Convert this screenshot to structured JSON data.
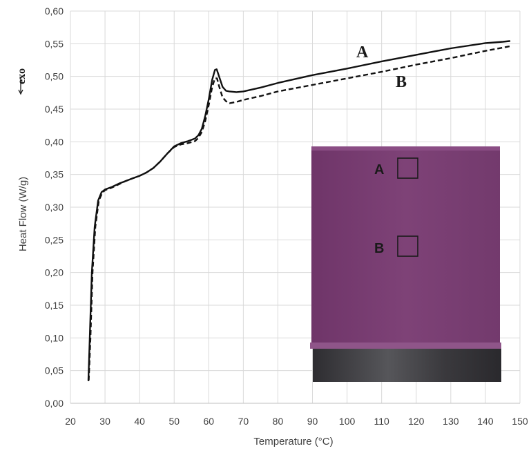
{
  "chart_data": {
    "type": "line",
    "title": "",
    "xlabel": "Temperature (°C)",
    "ylabel": "Heat Flow (W/g)",
    "xlim": [
      20,
      150
    ],
    "ylim": [
      0,
      0.6
    ],
    "x_ticks": [
      20,
      30,
      40,
      50,
      60,
      70,
      80,
      90,
      100,
      110,
      120,
      130,
      140,
      150
    ],
    "y_ticks": [
      "0,00",
      "0,05",
      "0,10",
      "0,15",
      "0,20",
      "0,25",
      "0,30",
      "0,35",
      "0,40",
      "0,45",
      "0,50",
      "0,55",
      "0,60"
    ],
    "grid": true,
    "direction_marker": "exo",
    "series": [
      {
        "name": "A",
        "style": "solid",
        "color": "#111111",
        "points": [
          [
            25.2,
            0.035
          ],
          [
            25.6,
            0.1
          ],
          [
            26.2,
            0.2
          ],
          [
            27,
            0.27
          ],
          [
            28,
            0.31
          ],
          [
            29,
            0.323
          ],
          [
            30,
            0.327
          ],
          [
            32,
            0.331
          ],
          [
            34,
            0.336
          ],
          [
            36,
            0.34
          ],
          [
            38,
            0.344
          ],
          [
            40,
            0.348
          ],
          [
            42,
            0.353
          ],
          [
            44,
            0.36
          ],
          [
            46,
            0.37
          ],
          [
            48,
            0.382
          ],
          [
            50,
            0.393
          ],
          [
            52,
            0.398
          ],
          [
            54,
            0.401
          ],
          [
            56,
            0.405
          ],
          [
            57,
            0.41
          ],
          [
            58,
            0.42
          ],
          [
            59,
            0.44
          ],
          [
            60,
            0.465
          ],
          [
            61,
            0.495
          ],
          [
            61.8,
            0.51
          ],
          [
            62.3,
            0.511
          ],
          [
            63,
            0.5
          ],
          [
            64,
            0.484
          ],
          [
            65,
            0.478
          ],
          [
            66,
            0.477
          ],
          [
            68,
            0.476
          ],
          [
            70,
            0.477
          ],
          [
            75,
            0.483
          ],
          [
            80,
            0.49
          ],
          [
            90,
            0.502
          ],
          [
            100,
            0.512
          ],
          [
            110,
            0.523
          ],
          [
            120,
            0.533
          ],
          [
            130,
            0.543
          ],
          [
            140,
            0.551
          ],
          [
            145,
            0.553
          ],
          [
            147,
            0.554
          ]
        ]
      },
      {
        "name": "B",
        "style": "dashed",
        "color": "#111111",
        "points": [
          [
            25.3,
            0.035
          ],
          [
            25.8,
            0.1
          ],
          [
            26.4,
            0.2
          ],
          [
            27.2,
            0.27
          ],
          [
            28.2,
            0.31
          ],
          [
            29.2,
            0.322
          ],
          [
            30,
            0.326
          ],
          [
            32,
            0.33
          ],
          [
            34,
            0.335
          ],
          [
            36,
            0.34
          ],
          [
            38,
            0.344
          ],
          [
            40,
            0.348
          ],
          [
            42,
            0.353
          ],
          [
            44,
            0.36
          ],
          [
            46,
            0.37
          ],
          [
            48,
            0.382
          ],
          [
            50,
            0.392
          ],
          [
            52,
            0.396
          ],
          [
            54,
            0.398
          ],
          [
            56,
            0.401
          ],
          [
            57,
            0.406
          ],
          [
            58,
            0.415
          ],
          [
            59,
            0.432
          ],
          [
            60,
            0.456
          ],
          [
            61,
            0.484
          ],
          [
            61.8,
            0.497
          ],
          [
            62.4,
            0.497
          ],
          [
            63,
            0.485
          ],
          [
            64,
            0.468
          ],
          [
            65,
            0.462
          ],
          [
            66,
            0.459
          ],
          [
            68,
            0.461
          ],
          [
            70,
            0.464
          ],
          [
            75,
            0.47
          ],
          [
            80,
            0.477
          ],
          [
            90,
            0.487
          ],
          [
            100,
            0.497
          ],
          [
            110,
            0.507
          ],
          [
            120,
            0.518
          ],
          [
            130,
            0.528
          ],
          [
            140,
            0.539
          ],
          [
            145,
            0.544
          ],
          [
            147,
            0.546
          ]
        ]
      }
    ]
  },
  "annotations": {
    "exo": "exo",
    "label_a": "A",
    "label_b": "B"
  },
  "inset": {
    "description_colors": {
      "sample": "#7c3f75",
      "base": "#3e3d41"
    },
    "region_a": "A",
    "region_b": "B"
  }
}
